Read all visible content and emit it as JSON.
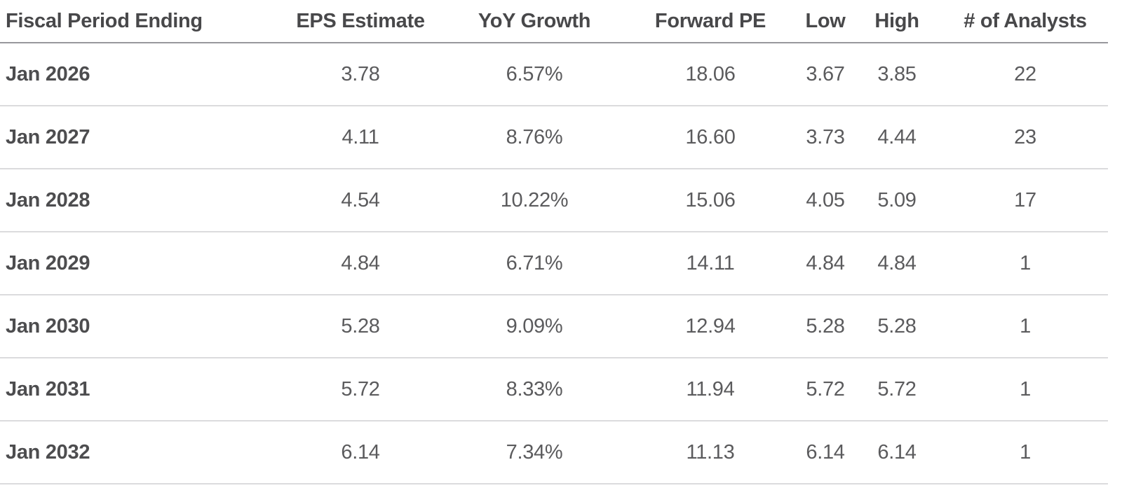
{
  "table": {
    "headers": {
      "period": "Fiscal Period Ending",
      "eps_estimate": "EPS Estimate",
      "yoy_growth": "YoY Growth",
      "forward_pe": "Forward PE",
      "low": "Low",
      "high": "High",
      "analysts": "# of Analysts"
    },
    "rows": [
      {
        "period": "Jan 2026",
        "eps_estimate": "3.78",
        "yoy_growth": "6.57%",
        "forward_pe": "18.06",
        "low": "3.67",
        "high": "3.85",
        "analysts": "22"
      },
      {
        "period": "Jan 2027",
        "eps_estimate": "4.11",
        "yoy_growth": "8.76%",
        "forward_pe": "16.60",
        "low": "3.73",
        "high": "4.44",
        "analysts": "23"
      },
      {
        "period": "Jan 2028",
        "eps_estimate": "4.54",
        "yoy_growth": "10.22%",
        "forward_pe": "15.06",
        "low": "4.05",
        "high": "5.09",
        "analysts": "17"
      },
      {
        "period": "Jan 2029",
        "eps_estimate": "4.84",
        "yoy_growth": "6.71%",
        "forward_pe": "14.11",
        "low": "4.84",
        "high": "4.84",
        "analysts": "1"
      },
      {
        "period": "Jan 2030",
        "eps_estimate": "5.28",
        "yoy_growth": "9.09%",
        "forward_pe": "12.94",
        "low": "5.28",
        "high": "5.28",
        "analysts": "1"
      },
      {
        "period": "Jan 2031",
        "eps_estimate": "5.72",
        "yoy_growth": "8.33%",
        "forward_pe": "11.94",
        "low": "5.72",
        "high": "5.72",
        "analysts": "1"
      },
      {
        "period": "Jan 2032",
        "eps_estimate": "6.14",
        "yoy_growth": "7.34%",
        "forward_pe": "11.13",
        "low": "6.14",
        "high": "6.14",
        "analysts": "1"
      }
    ]
  },
  "colors": {
    "background": "#ffffff",
    "header_text": "#48484a",
    "row_label_text": "#4d4d4f",
    "value_text": "#5b5b5d",
    "header_divider": "#97979c",
    "row_divider": "#dbdbdd"
  }
}
